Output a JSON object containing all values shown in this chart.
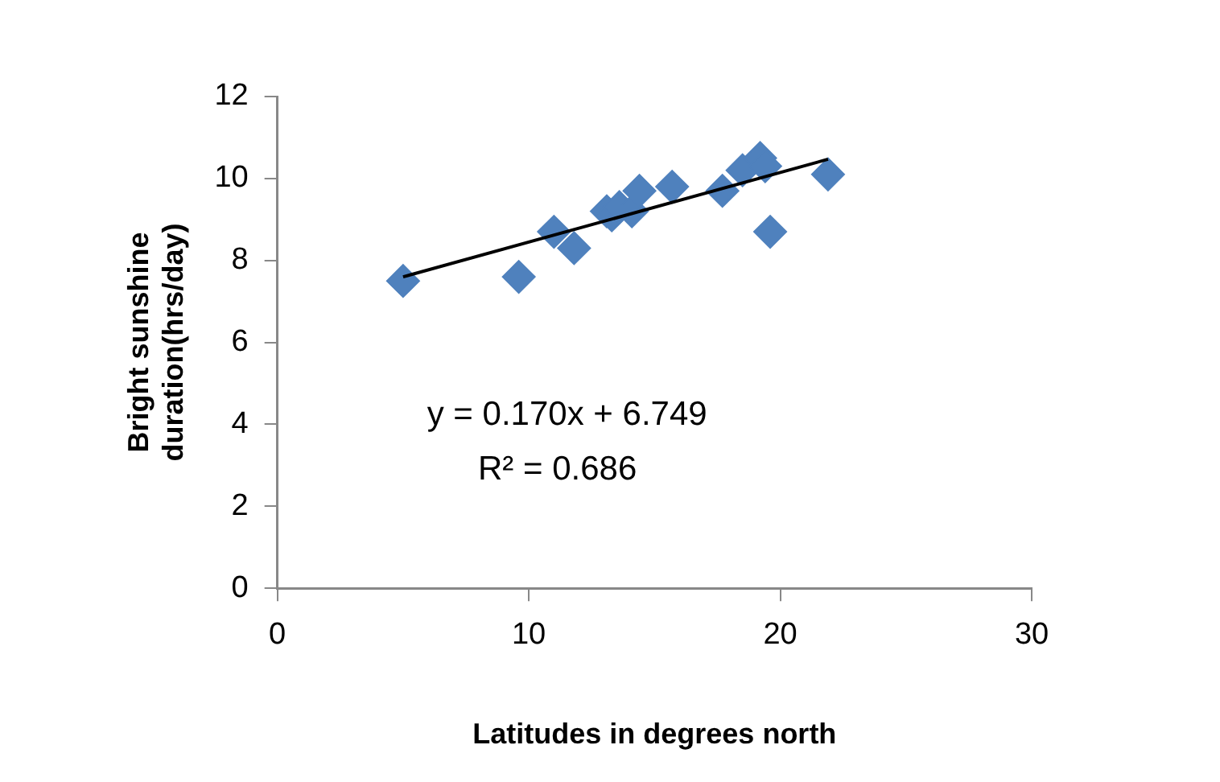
{
  "chart_data": {
    "type": "scatter",
    "xlabel": "Latitudes in degrees north",
    "ylabel": "Bright sunshine duration(hrs/day)",
    "xlim": [
      0,
      30
    ],
    "xticks": [
      0,
      10,
      20,
      30
    ],
    "ylim": [
      0,
      12
    ],
    "yticks": [
      0,
      2,
      4,
      6,
      8,
      10,
      12
    ],
    "grid": false,
    "legend": false,
    "marker": "diamond",
    "annotations": [
      "y = 0.170x + 6.749",
      "R² = 0.686"
    ],
    "series": [
      {
        "color": "#4f81bd",
        "x": [
          5,
          9.6,
          11,
          11.8,
          13.1,
          13.3,
          13.6,
          14.1,
          14.4,
          15.7,
          17.7,
          18.5,
          19.2,
          19.4,
          19.6,
          21.9
        ],
        "values": [
          7.5,
          7.6,
          8.7,
          8.3,
          9.2,
          9.1,
          9.3,
          9.2,
          9.7,
          9.8,
          9.7,
          10.2,
          10.5,
          10.3,
          8.7,
          10.1
        ]
      },
      {
        "type": "line",
        "color": "#000000",
        "marker": "none",
        "x": [
          5,
          21.9
        ],
        "values": [
          7.6,
          10.47
        ]
      }
    ]
  }
}
